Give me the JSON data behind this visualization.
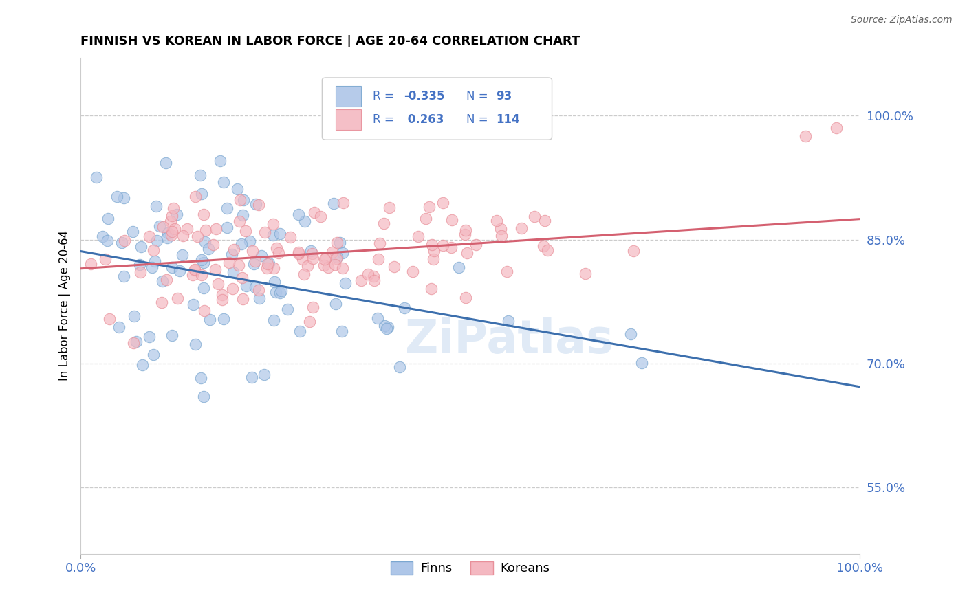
{
  "title": "FINNISH VS KOREAN IN LABOR FORCE | AGE 20-64 CORRELATION CHART",
  "source_text": "Source: ZipAtlas.com",
  "ylabel": "In Labor Force | Age 20-64",
  "xlim": [
    0.0,
    1.0
  ],
  "ylim": [
    0.47,
    1.07
  ],
  "yticks": [
    0.55,
    0.7,
    0.85,
    1.0
  ],
  "ytick_labels": [
    "55.0%",
    "70.0%",
    "85.0%",
    "100.0%"
  ],
  "xticks": [
    0.0,
    1.0
  ],
  "xtick_labels": [
    "0.0%",
    "100.0%"
  ],
  "blue_fill": "#aec6e8",
  "blue_edge": "#7ba7d0",
  "pink_fill": "#f4b8c1",
  "pink_edge": "#e8909a",
  "blue_line_color": "#3c6fad",
  "pink_line_color": "#d46070",
  "label_color": "#4472c4",
  "watermark_color": "#ccddf0",
  "watermark_text": "ZiPatlas",
  "finns_label": "Finns",
  "koreans_label": "Koreans",
  "R_finns": -0.335,
  "N_finns": 93,
  "R_koreans": 0.263,
  "N_koreans": 114,
  "finns_seed": 42,
  "koreans_seed": 99,
  "finns_line_x0": 0.0,
  "finns_line_y0": 0.836,
  "finns_line_x1": 1.0,
  "finns_line_y1": 0.672,
  "koreans_line_x0": 0.0,
  "koreans_line_y0": 0.815,
  "koreans_line_x1": 1.0,
  "koreans_line_y1": 0.875
}
